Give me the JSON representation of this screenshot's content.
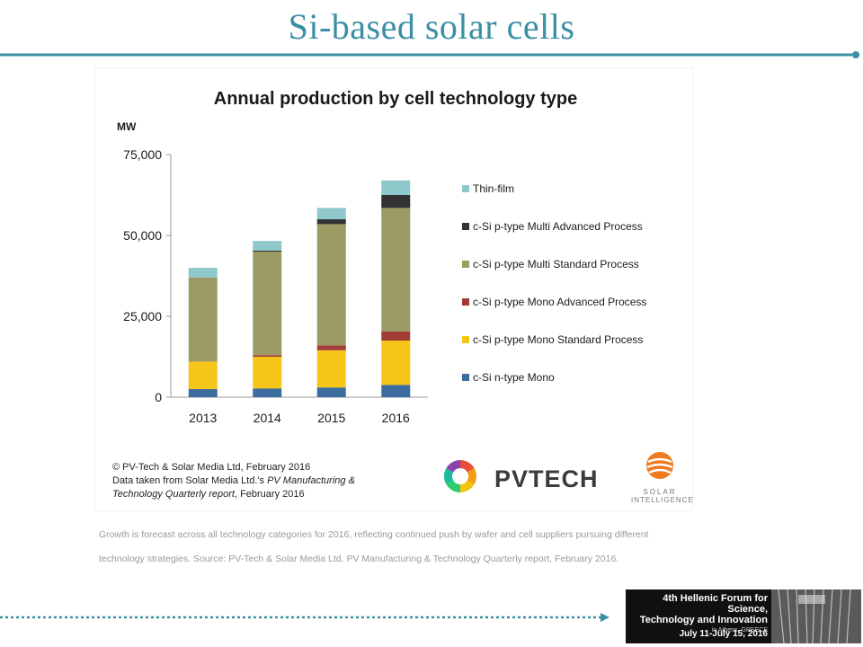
{
  "slide": {
    "title": "Si-based solar cells",
    "caption_line1": "Growth is forecast across all technology categories for 2016, reflecting continued push by wafer and cell suppliers pursuing different",
    "caption_line2": "technology strategies. Source: PV-Tech & Solar Media Ltd. PV Manufacturing & Technology Quarterly report, February 2016."
  },
  "figure": {
    "credit_line1": "© PV-Tech & Solar Media Ltd, February 2016",
    "credit_line2a": "Data taken from Solar Media Ltd.'s ",
    "credit_line2b": "PV Manufacturing &",
    "credit_line3a": "Technology Quarterly report",
    "credit_line3b": ", February 2016",
    "pvtech_logo_text": "PVTECH",
    "si_logo_line1": "SOLAR",
    "si_logo_line2": "INTELLIGENCE"
  },
  "event": {
    "line1": "4th Hellenic Forum for Science,",
    "line2": "Technology and Innovation",
    "line3": "in Athens, GREECE",
    "date": "July 11-July 15, 2016"
  },
  "colors": {
    "title": "#3a8fa6",
    "rule": "#3a8fa6"
  },
  "chart_data": {
    "type": "bar",
    "stacked": true,
    "title": "Annual production by cell technology type",
    "ylabel": "MW",
    "ylim": [
      0,
      75000
    ],
    "yticks": [
      0,
      25000,
      50000,
      75000
    ],
    "ytick_labels": [
      "0",
      "25,000",
      "50,000",
      "75,000"
    ],
    "categories": [
      "2013",
      "2014",
      "2015",
      "2016"
    ],
    "legend_position": "right",
    "series": [
      {
        "name": "c-Si n-type Mono",
        "color": "#3d6c9e",
        "values": [
          2500,
          2700,
          3000,
          3800
        ]
      },
      {
        "name": "c-Si p-type Mono Standard Process",
        "color": "#f5c518",
        "values": [
          8500,
          9800,
          11500,
          13700
        ]
      },
      {
        "name": "c-Si p-type Mono Advanced Process",
        "color": "#a13d36",
        "values": [
          0,
          500,
          1500,
          2800
        ]
      },
      {
        "name": "c-Si p-type Multi Standard Process",
        "color": "#9b9b63",
        "values": [
          26000,
          32000,
          37500,
          38200
        ]
      },
      {
        "name": "c-Si p-type Multi Advanced Process",
        "color": "#333333",
        "values": [
          0,
          300,
          1500,
          4000
        ]
      },
      {
        "name": "Thin-film",
        "color": "#8fc8cb",
        "values": [
          3000,
          3000,
          3500,
          4500
        ]
      }
    ],
    "legend_order": [
      5,
      4,
      3,
      2,
      1,
      0
    ]
  }
}
